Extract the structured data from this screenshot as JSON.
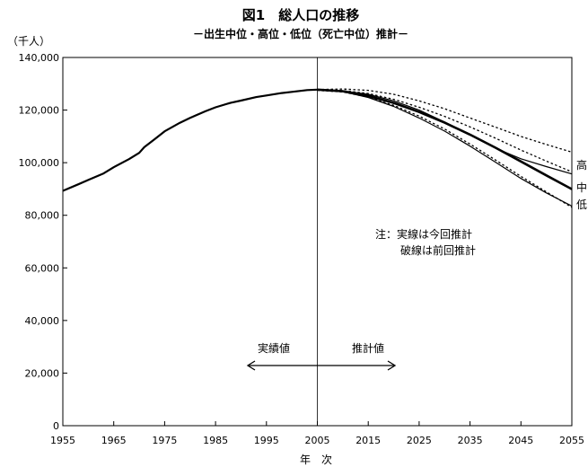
{
  "title": "図1　総人口の推移",
  "subtitle": "－出生中位・高位・低位（死亡中位）推計－",
  "chart_data": {
    "type": "line",
    "title": "図1　総人口の推移",
    "subtitle": "－出生中位・高位・低位（死亡中位）推計－",
    "ylabel": "（千人）",
    "xlabel": "年　次",
    "xlim": [
      1955,
      2055
    ],
    "ylim": [
      0,
      140000
    ],
    "x_ticks": [
      "1955",
      "1965",
      "1975",
      "1985",
      "1995",
      "2005",
      "2015",
      "2025",
      "2035",
      "2045",
      "2055"
    ],
    "y_ticks": [
      "0",
      "20,000",
      "40,000",
      "60,000",
      "80,000",
      "100,000",
      "120,000",
      "140,000"
    ],
    "grid": false,
    "divider_year": 2005,
    "actual_label": "実績値",
    "projection_label": "推計値",
    "note_lines": [
      "注：実線は今回推計",
      "破線は前回推計"
    ],
    "series": [
      {
        "name": "",
        "style": "solid",
        "x": [
          1955,
          1958,
          1960,
          1963,
          1965,
          1968,
          1970,
          1971,
          1973,
          1975,
          1978,
          1980,
          1983,
          1985,
          1988,
          1990,
          1993,
          1995,
          1998,
          2000,
          2003,
          2005
        ],
        "y": [
          89276,
          91767,
          93419,
          95901,
          98275,
          101331,
          103720,
          105900,
          108900,
          111940,
          115174,
          117060,
          119536,
          121049,
          122783,
          123611,
          124938,
          125570,
          126486,
          126926,
          127619,
          127768
        ]
      },
      {
        "name": "高",
        "style": "solid",
        "x": [
          2005,
          2010,
          2015,
          2020,
          2025,
          2030,
          2035,
          2040,
          2045,
          2050,
          2055
        ],
        "y": [
          127768,
          127300,
          126000,
          123500,
          120000,
          115500,
          110500,
          105500,
          101500,
          98500,
          95700
        ]
      },
      {
        "name": "中",
        "style": "solid-thick",
        "x": [
          2005,
          2010,
          2015,
          2020,
          2025,
          2030,
          2035,
          2040,
          2045,
          2050,
          2055
        ],
        "y": [
          127768,
          127176,
          125430,
          122735,
          119270,
          115224,
          110679,
          105695,
          100443,
          95152,
          89930
        ]
      },
      {
        "name": "低",
        "style": "solid",
        "x": [
          2005,
          2010,
          2015,
          2020,
          2025,
          2030,
          2035,
          2040,
          2045,
          2050,
          2055
        ],
        "y": [
          127768,
          127000,
          124800,
          121400,
          117000,
          112000,
          106300,
          100200,
          94000,
          88500,
          83500
        ]
      },
      {
        "name": "高",
        "style": "dashed",
        "x": [
          2005,
          2010,
          2015,
          2020,
          2025,
          2030,
          2035,
          2040,
          2045,
          2050,
          2055
        ],
        "y": [
          127800,
          128000,
          127500,
          126000,
          123500,
          120500,
          117000,
          113500,
          110000,
          106900,
          104000
        ]
      },
      {
        "name": "中",
        "style": "dashed",
        "x": [
          2005,
          2010,
          2015,
          2020,
          2025,
          2030,
          2035,
          2040,
          2045,
          2050,
          2055
        ],
        "y": [
          127600,
          127400,
          126300,
          124100,
          121100,
          117600,
          113600,
          109300,
          104800,
          100600,
          96500
        ]
      },
      {
        "name": "低",
        "style": "dashed",
        "x": [
          2005,
          2010,
          2015,
          2020,
          2025,
          2030,
          2035,
          2040,
          2045,
          2050,
          2055
        ],
        "y": [
          127500,
          126900,
          124900,
          121800,
          117700,
          112800,
          107100,
          101000,
          94800,
          88900,
          83000
        ]
      }
    ]
  }
}
